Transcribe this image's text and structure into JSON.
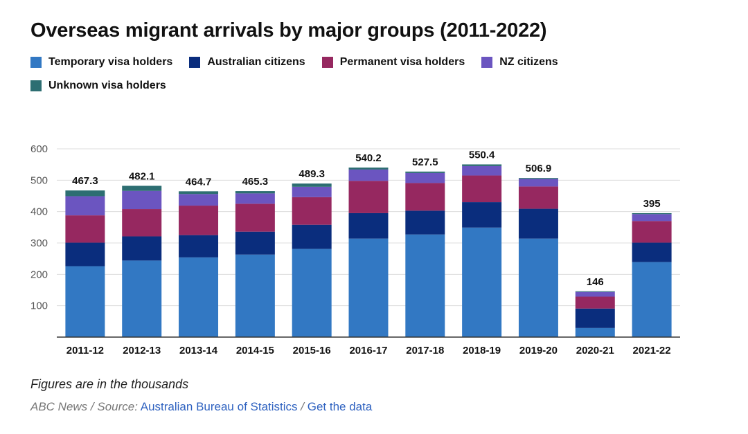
{
  "colors": {
    "temporary": "#3278c3",
    "australian": "#0a2d7d",
    "permanent": "#962860",
    "nz": "#6b55c0",
    "unknown": "#2d6e72",
    "grid": "#dcdcdc",
    "axis": "#333333"
  },
  "footer": {
    "note": "Figures are in the thousands",
    "prefix": "ABC News / Source:",
    "source_link": "Australian Bureau of Statistics",
    "separator": "/",
    "data_link": "Get the data"
  },
  "chart_data": {
    "type": "bar",
    "stacked": true,
    "title": "Overseas migrant arrivals by major groups (2011-2022)",
    "xlabel": "",
    "ylabel": "",
    "ylim": [
      0,
      600
    ],
    "yticks": [
      100,
      200,
      300,
      400,
      500,
      600
    ],
    "grid": true,
    "legend_position": "top-left",
    "categories": [
      "2011-12",
      "2012-13",
      "2013-14",
      "2014-15",
      "2015-16",
      "2016-17",
      "2017-18",
      "2018-19",
      "2019-20",
      "2020-21",
      "2021-22"
    ],
    "totals": [
      "467.3",
      "482.1",
      "464.7",
      "465.3",
      "489.3",
      "540.2",
      "527.5",
      "550.4",
      "506.9",
      "146",
      "395"
    ],
    "series": [
      {
        "name": "Temporary visa holders",
        "color_key": "temporary",
        "values": [
          226,
          244,
          254,
          263,
          281,
          314,
          327,
          349,
          314,
          29,
          239
        ]
      },
      {
        "name": "Australian citizens",
        "color_key": "australian",
        "values": [
          75,
          77,
          71,
          73,
          77,
          81,
          76,
          81,
          95,
          62,
          62
        ]
      },
      {
        "name": "Permanent visa holders",
        "color_key": "permanent",
        "values": [
          87,
          87,
          94,
          89,
          88,
          103,
          88,
          85,
          71,
          38,
          69
        ]
      },
      {
        "name": "NZ citizens",
        "color_key": "nz",
        "values": [
          61,
          58,
          37,
          33,
          33,
          36,
          32,
          30,
          24,
          15,
          22
        ]
      },
      {
        "name": "Unknown visa holders",
        "color_key": "unknown",
        "values": [
          18.3,
          16.1,
          8.7,
          7.3,
          10.3,
          6.2,
          4.5,
          5.4,
          2.9,
          2,
          3
        ]
      }
    ]
  }
}
